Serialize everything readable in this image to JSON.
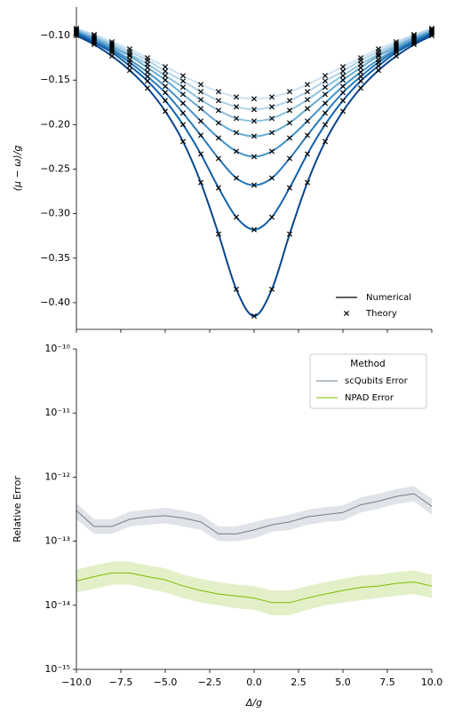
{
  "chart_data": [
    {
      "type": "line",
      "ylabel": "(μ − ω)/g",
      "marker": "x",
      "x": [
        -10,
        -9,
        -8,
        -7,
        -6,
        -5,
        -4,
        -3,
        -2,
        -1,
        0,
        1,
        2,
        3,
        4,
        5,
        6,
        7,
        8,
        9,
        10
      ],
      "xlim": [
        -10,
        10
      ],
      "xticks": [
        -10,
        -7.5,
        -5,
        -2.5,
        0,
        2.5,
        5,
        7.5,
        10
      ],
      "ylim": [
        -0.43,
        -0.068
      ],
      "yticks": [
        {
          "value": -0.1,
          "label": "−0.10"
        },
        {
          "value": -0.15,
          "label": "−0.15"
        },
        {
          "value": -0.2,
          "label": "−0.20"
        },
        {
          "value": -0.25,
          "label": "−0.25"
        },
        {
          "value": -0.3,
          "label": "−0.30"
        },
        {
          "value": -0.35,
          "label": "−0.35"
        },
        {
          "value": -0.4,
          "label": "−0.40"
        }
      ],
      "legend": {
        "loc": "lower right",
        "entries": [
          "Numerical",
          "Theory"
        ]
      },
      "series": [
        {
          "color": "#cfe1f2",
          "values": [
            -0.092,
            -0.099,
            -0.107,
            -0.115,
            -0.125,
            -0.135,
            -0.145,
            -0.155,
            -0.163,
            -0.169,
            -0.171,
            -0.169,
            -0.163,
            -0.155,
            -0.145,
            -0.135,
            -0.125,
            -0.115,
            -0.107,
            -0.099,
            -0.092
          ]
        },
        {
          "color": "#b0d2e8",
          "values": [
            -0.093,
            -0.1,
            -0.109,
            -0.118,
            -0.128,
            -0.14,
            -0.151,
            -0.163,
            -0.173,
            -0.18,
            -0.183,
            -0.18,
            -0.173,
            -0.163,
            -0.151,
            -0.14,
            -0.128,
            -0.118,
            -0.109,
            -0.1,
            -0.093
          ]
        },
        {
          "color": "#8dc0de",
          "values": [
            -0.094,
            -0.102,
            -0.111,
            -0.121,
            -0.132,
            -0.145,
            -0.158,
            -0.172,
            -0.184,
            -0.193,
            -0.196,
            -0.193,
            -0.184,
            -0.172,
            -0.158,
            -0.145,
            -0.132,
            -0.121,
            -0.111,
            -0.102,
            -0.094
          ]
        },
        {
          "color": "#66a9d2",
          "values": [
            -0.095,
            -0.103,
            -0.113,
            -0.123,
            -0.136,
            -0.15,
            -0.166,
            -0.182,
            -0.198,
            -0.209,
            -0.213,
            -0.209,
            -0.198,
            -0.182,
            -0.166,
            -0.15,
            -0.136,
            -0.123,
            -0.113,
            -0.103,
            -0.095
          ]
        },
        {
          "color": "#4592c6",
          "values": [
            -0.096,
            -0.105,
            -0.115,
            -0.127,
            -0.141,
            -0.157,
            -0.176,
            -0.196,
            -0.215,
            -0.23,
            -0.236,
            -0.23,
            -0.215,
            -0.196,
            -0.176,
            -0.157,
            -0.141,
            -0.127,
            -0.115,
            -0.105,
            -0.096
          ]
        },
        {
          "color": "#2878b8",
          "values": [
            -0.097,
            -0.106,
            -0.117,
            -0.13,
            -0.146,
            -0.164,
            -0.187,
            -0.212,
            -0.238,
            -0.26,
            -0.268,
            -0.26,
            -0.238,
            -0.212,
            -0.187,
            -0.164,
            -0.146,
            -0.13,
            -0.117,
            -0.106,
            -0.097
          ]
        },
        {
          "color": "#1060aa",
          "values": [
            -0.098,
            -0.108,
            -0.119,
            -0.134,
            -0.151,
            -0.173,
            -0.2,
            -0.233,
            -0.271,
            -0.304,
            -0.318,
            -0.304,
            -0.271,
            -0.233,
            -0.2,
            -0.173,
            -0.151,
            -0.134,
            -0.119,
            -0.108,
            -0.098
          ]
        },
        {
          "color": "#08458c",
          "values": [
            -0.1,
            -0.11,
            -0.123,
            -0.139,
            -0.159,
            -0.185,
            -0.219,
            -0.265,
            -0.323,
            -0.385,
            -0.415,
            -0.385,
            -0.323,
            -0.265,
            -0.219,
            -0.185,
            -0.159,
            -0.139,
            -0.123,
            -0.11,
            -0.1
          ]
        }
      ]
    },
    {
      "type": "line",
      "yscale": "log",
      "xlabel": "Δ/g",
      "ylabel": "Relative Error",
      "x": [
        -10,
        -9,
        -8,
        -7,
        -6,
        -5,
        -4,
        -3,
        -2,
        -1,
        0,
        1,
        2,
        3,
        4,
        5,
        6,
        7,
        8,
        9,
        10
      ],
      "xlim": [
        -10,
        10
      ],
      "xticks": [
        {
          "value": -10,
          "label": "−10.0"
        },
        {
          "value": -7.5,
          "label": "−7.5"
        },
        {
          "value": -5,
          "label": "−5.0"
        },
        {
          "value": -2.5,
          "label": "−2.5"
        },
        {
          "value": 0,
          "label": "0.0"
        },
        {
          "value": 2.5,
          "label": "2.5"
        },
        {
          "value": 5,
          "label": "5.0"
        },
        {
          "value": 7.5,
          "label": "7.5"
        },
        {
          "value": 10,
          "label": "10.0"
        }
      ],
      "ylim": [
        1e-15,
        1e-10
      ],
      "yticks": [
        {
          "value": 1e-15,
          "label": "10⁻¹⁵"
        },
        {
          "value": 1e-14,
          "label": "10⁻¹⁴"
        },
        {
          "value": 1e-13,
          "label": "10⁻¹³"
        },
        {
          "value": 1e-12,
          "label": "10⁻¹²"
        },
        {
          "value": 1e-11,
          "label": "10⁻¹¹"
        },
        {
          "value": 1e-10,
          "label": "10⁻¹⁰"
        }
      ],
      "legend": {
        "loc": "upper right",
        "title": "Method"
      },
      "series": [
        {
          "name": "scQubits Error",
          "color": "#708090",
          "values": [
            3e-13,
            1.7e-13,
            1.7e-13,
            2.2e-13,
            2.4e-13,
            2.5e-13,
            2.3e-13,
            2e-13,
            1.3e-13,
            1.3e-13,
            1.5e-13,
            1.8e-13,
            2e-13,
            2.4e-13,
            2.6e-13,
            2.8e-13,
            3.7e-13,
            4.2e-13,
            5e-13,
            5.5e-13,
            3.5e-13
          ],
          "lower": [
            2.2e-13,
            1.3e-13,
            1.3e-13,
            1.7e-13,
            1.8e-13,
            1.9e-13,
            1.7e-13,
            1.5e-13,
            1e-13,
            1e-13,
            1.1e-13,
            1.4e-13,
            1.5e-13,
            1.8e-13,
            2e-13,
            2.1e-13,
            2.8e-13,
            3.2e-13,
            3.8e-13,
            4.2e-13,
            2.6e-13
          ],
          "upper": [
            3.9e-13,
            2.2e-13,
            2.2e-13,
            2.9e-13,
            3.1e-13,
            3.3e-13,
            3e-13,
            2.6e-13,
            1.7e-13,
            1.7e-13,
            2e-13,
            2.3e-13,
            2.6e-13,
            3.1e-13,
            3.4e-13,
            3.6e-13,
            4.8e-13,
            5.5e-13,
            6.5e-13,
            7.2e-13,
            4.6e-13
          ]
        },
        {
          "name": "NPAD Error",
          "color": "#7fba00",
          "values": [
            2.4e-14,
            2.8e-14,
            3.2e-14,
            3.2e-14,
            2.8e-14,
            2.5e-14,
            2e-14,
            1.7e-14,
            1.5e-14,
            1.4e-14,
            1.3e-14,
            1.1e-14,
            1.1e-14,
            1.3e-14,
            1.5e-14,
            1.7e-14,
            1.9e-14,
            2e-14,
            2.2e-14,
            2.3e-14,
            2e-14
          ],
          "lower": [
            1.6e-14,
            1.8e-14,
            2.1e-14,
            2.1e-14,
            1.8e-14,
            1.6e-14,
            1.3e-14,
            1.1e-14,
            1e-14,
            9e-15,
            8.5e-15,
            7e-15,
            7e-15,
            8.5e-15,
            1e-14,
            1.1e-14,
            1.2e-14,
            1.3e-14,
            1.4e-14,
            1.5e-14,
            1.3e-14
          ],
          "upper": [
            3.6e-14,
            4.2e-14,
            4.8e-14,
            4.8e-14,
            4.2e-14,
            3.8e-14,
            3e-14,
            2.6e-14,
            2.3e-14,
            2.1e-14,
            2e-14,
            1.7e-14,
            1.7e-14,
            2e-14,
            2.3e-14,
            2.6e-14,
            2.9e-14,
            3e-14,
            3.3e-14,
            3.5e-14,
            3e-14
          ]
        }
      ]
    }
  ]
}
